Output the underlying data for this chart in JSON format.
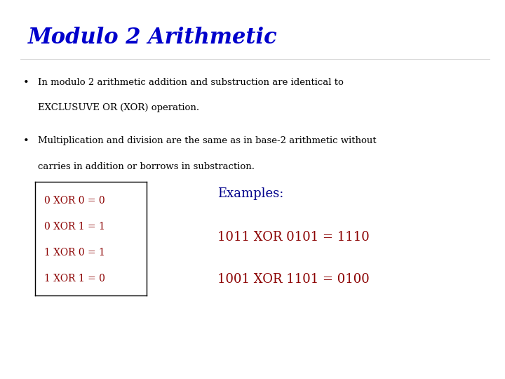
{
  "title": "Modulo 2 Arithmetic",
  "title_color": "#0000CC",
  "title_fontsize": 22,
  "title_style": "italic",
  "title_weight": "bold",
  "title_font": "DejaVu Serif",
  "bg_color": "#ffffff",
  "bullet1_line1": "In modulo 2 arithmetic addition and substruction are identical to",
  "bullet1_line2": "EXCLUSUVE OR (XOR) operation.",
  "bullet2_line1": "Multiplication and division are the same as in base-2 arithmetic without",
  "bullet2_line2": "carries in addition or borrows in substraction.",
  "bullet_fontsize": 9.5,
  "bullet_color": "#000000",
  "bullet_font": "DejaVu Serif",
  "xor_table": [
    "0 XOR 0 = 0",
    "0 XOR 1 = 1",
    "1 XOR 0 = 1",
    "1 XOR 1 = 0"
  ],
  "xor_table_color": "#8B0000",
  "xor_table_fontsize": 10,
  "xor_table_font": "DejaVu Serif",
  "examples_label": "Examples:",
  "examples_label_color": "#00008B",
  "examples_label_fontsize": 13,
  "examples_label_font": "DejaVu Serif",
  "example1": "1011 XOR 0101 = 1110",
  "example2": "1001 XOR 1101 = 0100",
  "example_color": "#8B0000",
  "example_fontsize": 13,
  "example_font": "DejaVu Serif"
}
